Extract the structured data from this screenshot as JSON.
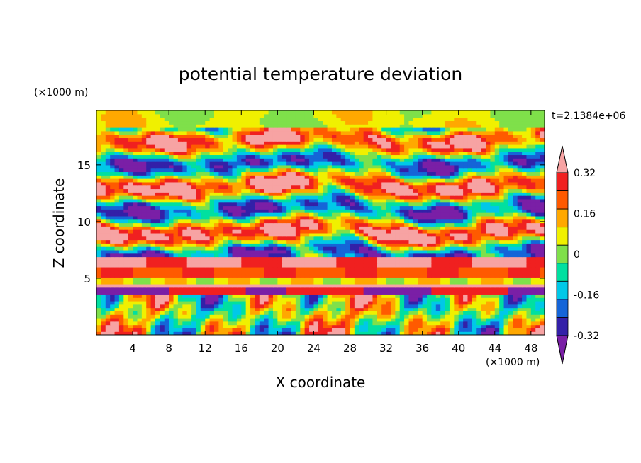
{
  "chart_data": {
    "type": "heatmap",
    "title": "potential temperature deviation",
    "xlabel": "X coordinate",
    "ylabel": "Z coordinate",
    "x_unit_label": "(×1000 m)",
    "y_unit_label": "(×1000 m)",
    "time_label": "t=2.1384e+06",
    "xlim": [
      0,
      49.5
    ],
    "ylim": [
      0,
      19.8
    ],
    "x_ticks": [
      4,
      8,
      12,
      16,
      20,
      24,
      28,
      32,
      36,
      40,
      44,
      48
    ],
    "y_ticks": [
      5,
      10,
      15
    ],
    "colorbar": {
      "levels": [
        -0.4,
        -0.32,
        -0.24,
        -0.16,
        -0.08,
        0,
        0.08,
        0.16,
        0.24,
        0.32,
        0.4
      ],
      "colors": [
        "#7a1fa6",
        "#3320a8",
        "#1565d8",
        "#00c8e8",
        "#00e0a0",
        "#7fe04a",
        "#f0f000",
        "#ffa800",
        "#ff5a00",
        "#f02020",
        "#f7a3a3"
      ],
      "tick_labels": [
        "0.32",
        "0.16",
        "0",
        "-0.16",
        "-0.32"
      ],
      "extend": "both"
    },
    "field_note": "Horizontally layered turbulent field: strong positive band near z≈4.3, alternating bands up to z≈18, green/yellow near top."
  }
}
